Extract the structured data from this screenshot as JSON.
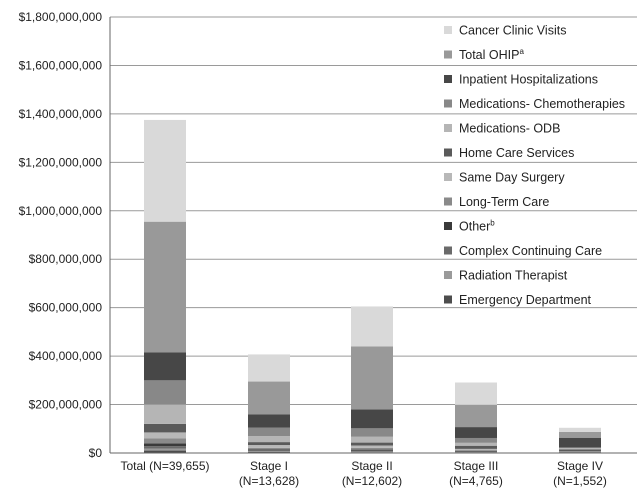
{
  "chart_data": {
    "type": "bar",
    "stacked": true,
    "categories": [
      [
        "Total (N=39,655)"
      ],
      [
        "Stage I",
        "(N=13,628)"
      ],
      [
        "Stage II",
        "(N=12,602)"
      ],
      [
        "Stage III",
        "(N=4,765)"
      ],
      [
        "Stage IV",
        "(N=1,552)"
      ]
    ],
    "ylim": [
      0,
      1800000000
    ],
    "yticks": [
      "$0",
      "$200,000,000",
      "$400,000,000",
      "$600,000,000",
      "$800,000,000",
      "$1,000,000,000",
      "$1,200,000,000",
      "$1,400,000,000",
      "$1,600,000,000",
      "$1,800,000,000"
    ],
    "ytick_values": [
      0,
      200000000,
      400000000,
      600000000,
      800000000,
      1000000000,
      1200000000,
      1400000000,
      1600000000,
      1800000000
    ],
    "grid": true,
    "legend_position": "right",
    "series": [
      {
        "name": "Emergency Department",
        "sup": "",
        "color": "#4d4d4d",
        "values": [
          10000000,
          4000000,
          3000000,
          1500000,
          800000
        ]
      },
      {
        "name": "Radiation Therapist",
        "sup": "",
        "color": "#9a9a9a",
        "values": [
          8000000,
          3000000,
          3000000,
          1500000,
          800000
        ]
      },
      {
        "name": "Complex Continuing Care",
        "sup": "",
        "color": "#6a6a6a",
        "values": [
          10000000,
          4000000,
          4000000,
          2000000,
          1000000
        ]
      },
      {
        "name": "Other",
        "sup": "b",
        "color": "#3a3a3a",
        "values": [
          12000000,
          4000000,
          4000000,
          3000000,
          1000000
        ]
      },
      {
        "name": "Long-Term Care",
        "sup": "",
        "color": "#8a8a8a",
        "values": [
          20000000,
          6000000,
          7000000,
          4000000,
          2000000
        ]
      },
      {
        "name": "Same Day Surgery",
        "sup": "",
        "color": "#b8b8b8",
        "values": [
          25000000,
          12000000,
          10000000,
          5000000,
          1000000
        ]
      },
      {
        "name": "Home Care Services",
        "sup": "",
        "color": "#5a5a5a",
        "values": [
          35000000,
          12000000,
          12000000,
          13000000,
          8500000
        ]
      },
      {
        "name": "Medications- ODB",
        "sup": "",
        "color": "#b5b5b5",
        "values": [
          80000000,
          25000000,
          24000000,
          12000000,
          5000000
        ]
      },
      {
        "name": "Medications- Chemotherapies",
        "sup": "",
        "color": "#888888",
        "values": [
          100000000,
          35000000,
          35000000,
          20000000,
          3000000
        ]
      },
      {
        "name": "Inpatient Hospitalizations",
        "sup": "",
        "color": "#474747",
        "values": [
          115000000,
          55000000,
          78000000,
          45000000,
          40000000
        ]
      },
      {
        "name": "Total OHIP",
        "sup": "a",
        "color": "#999999",
        "values": [
          540000000,
          135000000,
          260000000,
          92000000,
          24000000
        ]
      },
      {
        "name": "Cancer Clinic Visits",
        "sup": "",
        "color": "#d9d9d9",
        "values": [
          420000000,
          112000000,
          165000000,
          92000000,
          17000000
        ]
      }
    ]
  }
}
